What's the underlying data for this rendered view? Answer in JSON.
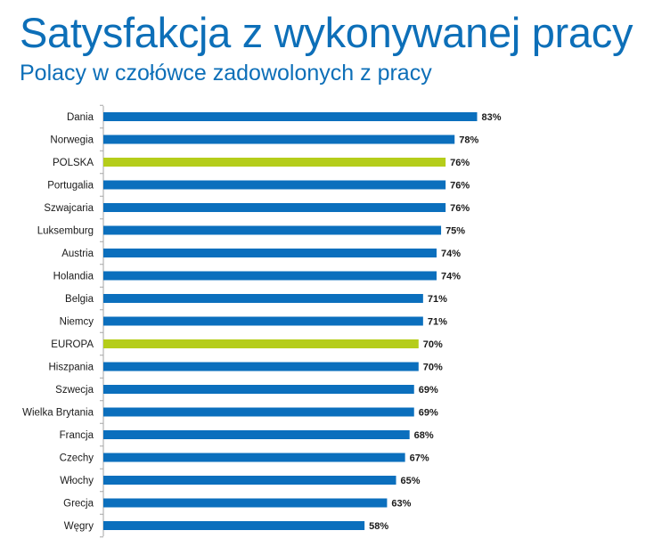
{
  "chart_data": {
    "type": "bar",
    "orientation": "horizontal",
    "title": "Satysfakcja z wykonywanej pracy",
    "subtitle": "Polacy w czołówce zadowolonych z pracy",
    "categories": [
      "Dania",
      "Norwegia",
      "POLSKA",
      "Portugalia",
      "Szwajcaria",
      "Luksemburg",
      "Austria",
      "Holandia",
      "Belgia",
      "Niemcy",
      "EUROPA",
      "Hiszpania",
      "Szwecja",
      "Wielka Brytania",
      "Francja",
      "Czechy",
      "Włochy",
      "Grecja",
      "Węgry"
    ],
    "values": [
      83,
      78,
      76,
      76,
      76,
      75,
      74,
      74,
      71,
      71,
      70,
      70,
      69,
      69,
      68,
      67,
      65,
      63,
      58
    ],
    "value_labels": [
      "83%",
      "78%",
      "76%",
      "76%",
      "76%",
      "75%",
      "74%",
      "74%",
      "71%",
      "71%",
      "70%",
      "70%",
      "69%",
      "69%",
      "68%",
      "67%",
      "65%",
      "63%",
      "58%"
    ],
    "highlighted": [
      "POLSKA",
      "EUROPA"
    ],
    "xlim": [
      0,
      83
    ],
    "grid": false,
    "legend": "none",
    "colors": {
      "default": "#0b6fbd",
      "highlight": "#b5cd1a",
      "axis": "#a6a6a6"
    }
  }
}
